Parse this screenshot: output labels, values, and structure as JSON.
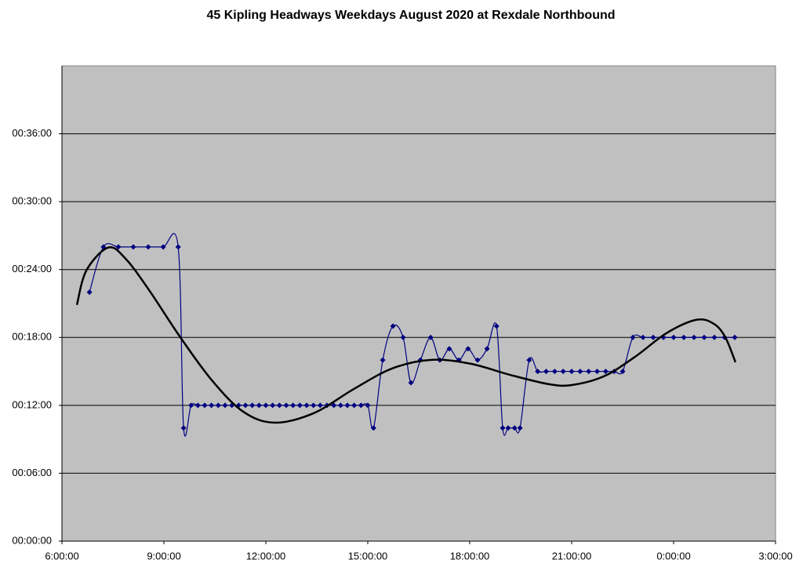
{
  "chart_data": {
    "type": "line",
    "title": "45 Kipling Headways Weekdays August 2020 at Rexdale Northbound",
    "xlim": [
      6,
      27
    ],
    "xticks": [
      {
        "value": 6,
        "label": "6:00:00"
      },
      {
        "value": 9,
        "label": "9:00:00"
      },
      {
        "value": 12,
        "label": "12:00:00"
      },
      {
        "value": 15,
        "label": "15:00:00"
      },
      {
        "value": 18,
        "label": "18:00:00"
      },
      {
        "value": 21,
        "label": "21:00:00"
      },
      {
        "value": 24,
        "label": "0:00:00"
      },
      {
        "value": 27,
        "label": "3:00:00"
      }
    ],
    "ylim": [
      0,
      42
    ],
    "yticks": [
      {
        "value": 0,
        "label": "00:00:00"
      },
      {
        "value": 6,
        "label": "00:06:00"
      },
      {
        "value": 12,
        "label": "00:12:00"
      },
      {
        "value": 18,
        "label": "00:18:00"
      },
      {
        "value": 24,
        "label": "00:24:00"
      },
      {
        "value": 30,
        "label": "00:30:00"
      },
      {
        "value": 36,
        "label": "00:36:00"
      }
    ],
    "grid": true,
    "plot_background": "#c0c0c0",
    "series": [
      {
        "color": "#000080",
        "marker": "diamond",
        "smooth": true,
        "x": [
          6.81,
          7.22,
          7.66,
          8.1,
          8.54,
          8.98,
          9.42,
          9.58,
          9.8,
          10.0,
          10.2,
          10.4,
          10.6,
          10.8,
          11.0,
          11.2,
          11.4,
          11.6,
          11.8,
          12.0,
          12.2,
          12.4,
          12.6,
          12.8,
          13.0,
          13.2,
          13.4,
          13.6,
          13.8,
          14.0,
          14.2,
          14.4,
          14.6,
          14.8,
          15.0,
          15.17,
          15.44,
          15.74,
          16.04,
          16.27,
          16.55,
          16.85,
          17.12,
          17.4,
          17.68,
          17.95,
          18.23,
          18.51,
          18.79,
          18.97,
          19.13,
          19.32,
          19.48,
          19.75,
          20.0,
          20.25,
          20.5,
          20.75,
          21.0,
          21.25,
          21.5,
          21.75,
          22.0,
          22.25,
          22.5,
          22.8,
          23.1,
          23.4,
          23.7,
          24.0,
          24.3,
          24.6,
          24.9,
          25.2,
          25.5,
          25.8
        ],
        "values": [
          22,
          26,
          26,
          26,
          26,
          26,
          26,
          10,
          12,
          12,
          12,
          12,
          12,
          12,
          12,
          12,
          12,
          12,
          12,
          12,
          12,
          12,
          12,
          12,
          12,
          12,
          12,
          12,
          12,
          12,
          12,
          12,
          12,
          12,
          12,
          10,
          16,
          19,
          18,
          14,
          16,
          18,
          16,
          17,
          16,
          17,
          16,
          17,
          19,
          10,
          10,
          10,
          10,
          16,
          15,
          15,
          15,
          15,
          15,
          15,
          15,
          15,
          15,
          15,
          15,
          18,
          18,
          18,
          18,
          18,
          18,
          18,
          18,
          18,
          18,
          18
        ]
      },
      {
        "color": "#000000",
        "marker": "none",
        "smooth": true,
        "x": [
          6.44,
          6.72,
          7.36,
          7.87,
          8.56,
          9.48,
          10.41,
          11.33,
          12.25,
          13.41,
          14.56,
          15.72,
          16.87,
          18.02,
          19.18,
          20.33,
          21.02,
          21.95,
          22.87,
          23.79,
          24.67,
          25.18,
          25.52,
          25.82
        ],
        "values": [
          20.88,
          23.93,
          25.94,
          24.97,
          22.2,
          18.03,
          14.22,
          11.45,
          10.47,
          11.31,
          13.39,
          15.26,
          16.02,
          15.68,
          14.7,
          13.87,
          13.8,
          14.57,
          16.3,
          18.38,
          19.56,
          19.21,
          18.03,
          15.81
        ]
      }
    ]
  }
}
